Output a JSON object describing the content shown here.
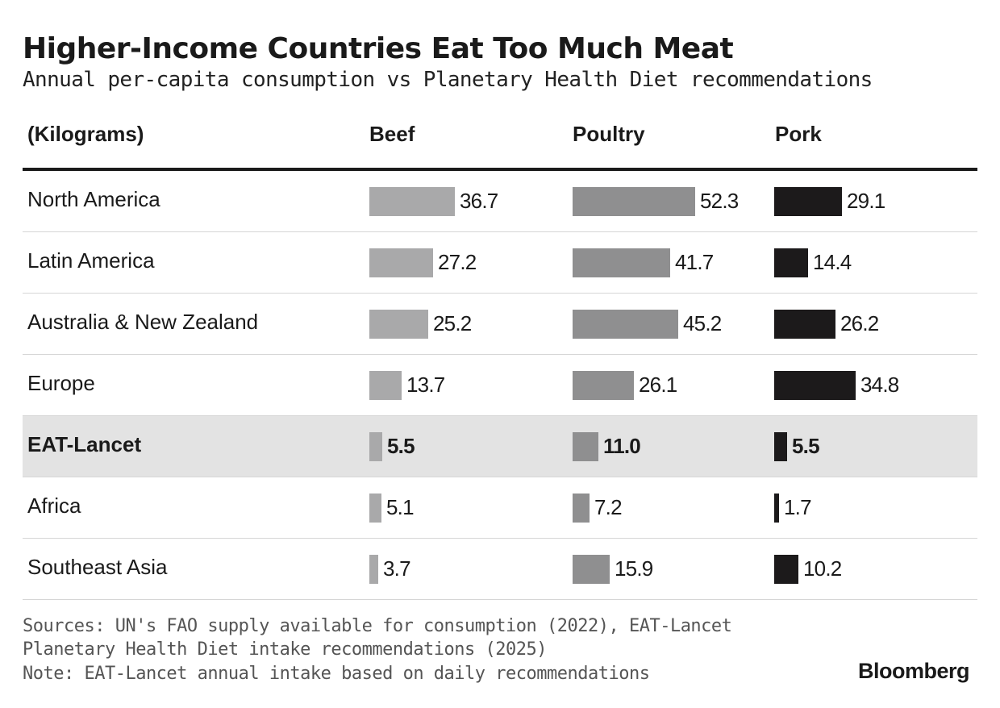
{
  "title": "Higher-Income Countries Eat Too Much Meat",
  "subtitle": "Annual per-capita consumption vs Planetary Health Diet recommendations",
  "chart_data": {
    "type": "table",
    "unit_label": "(Kilograms)",
    "columns": [
      "Beef",
      "Poultry",
      "Pork"
    ],
    "rows": [
      {
        "region": "North America",
        "values": [
          "36.7",
          "52.3",
          "29.1"
        ],
        "highlight": false
      },
      {
        "region": "Latin America",
        "values": [
          "27.2",
          "41.7",
          "14.4"
        ],
        "highlight": false
      },
      {
        "region": "Australia & New Zealand",
        "values": [
          "25.2",
          "45.2",
          "26.2"
        ],
        "highlight": false
      },
      {
        "region": "Europe",
        "values": [
          "13.7",
          "26.1",
          "34.8"
        ],
        "highlight": false
      },
      {
        "region": "EAT-Lancet",
        "values": [
          "5.5",
          "11.0",
          "5.5"
        ],
        "highlight": true
      },
      {
        "region": "Africa",
        "values": [
          "5.1",
          "7.2",
          "1.7"
        ],
        "highlight": false
      },
      {
        "region": "Southeast Asia",
        "values": [
          "3.7",
          "15.9",
          "10.2"
        ],
        "highlight": false
      }
    ],
    "colors": {
      "beef": "#a9a9aa",
      "poultry": "#8f8f90",
      "pork": "#1c1a1b",
      "highlight_row": "#e3e3e3"
    }
  },
  "footer": {
    "sources_line1": "Sources: UN's FAO supply available for consumption (2022), EAT-Lancet",
    "sources_line2": "Planetary Health Diet intake recommendations (2025)",
    "note": "Note: EAT-Lancet annual intake based on daily recommendations"
  },
  "logo": "Bloomberg"
}
